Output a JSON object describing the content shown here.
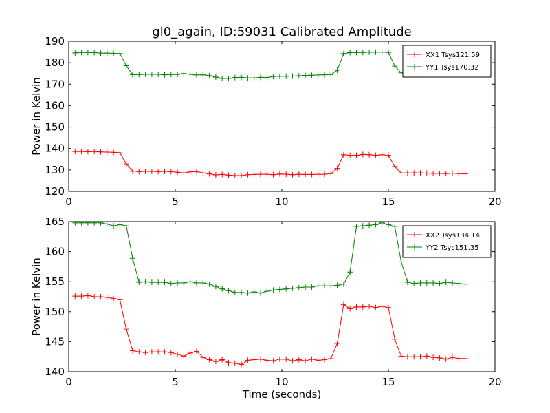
{
  "figure": {
    "title": "gl0_again, ID:59031 Calibrated Amplitude"
  },
  "chart_data": [
    {
      "type": "line",
      "title": "gl0_again, ID:59031 Calibrated Amplitude",
      "xlabel": "",
      "ylabel": "Power in Kelvin",
      "xlim": [
        0,
        20
      ],
      "ylim": [
        120,
        190
      ],
      "xticks": [
        0,
        5,
        10,
        15,
        20
      ],
      "yticks": [
        120,
        130,
        140,
        150,
        160,
        170,
        180,
        190
      ],
      "grid": false,
      "legend_position": "top-right",
      "x": [
        0.3,
        0.6,
        0.9,
        1.2,
        1.5,
        1.8,
        2.1,
        2.4,
        2.7,
        3.0,
        3.3,
        3.6,
        3.9,
        4.2,
        4.5,
        4.8,
        5.1,
        5.4,
        5.7,
        6.0,
        6.3,
        6.6,
        6.9,
        7.2,
        7.5,
        7.8,
        8.1,
        8.4,
        8.7,
        9.0,
        9.3,
        9.6,
        9.9,
        10.2,
        10.5,
        10.8,
        11.1,
        11.4,
        11.7,
        12.0,
        12.3,
        12.6,
        12.9,
        13.2,
        13.5,
        13.8,
        14.1,
        14.4,
        14.7,
        15.0,
        15.3,
        15.6,
        15.9,
        16.2,
        16.5,
        16.8,
        17.1,
        17.4,
        17.7,
        18.0,
        18.3,
        18.6
      ],
      "series": [
        {
          "name": "XX1 Tsys121.59",
          "color": "#ff0000",
          "values": [
            138.6,
            138.6,
            138.5,
            138.6,
            138.4,
            138.3,
            138.2,
            138.0,
            132.8,
            129.4,
            129.2,
            129.3,
            129.3,
            129.2,
            129.3,
            129.2,
            128.9,
            128.6,
            129.1,
            129.2,
            128.6,
            128.2,
            127.7,
            127.9,
            127.6,
            127.4,
            127.4,
            127.8,
            127.9,
            128.0,
            128.0,
            127.8,
            128.1,
            128.0,
            127.8,
            128.0,
            127.9,
            127.9,
            128.0,
            128.0,
            128.3,
            130.7,
            137.1,
            136.8,
            136.8,
            137.2,
            137.1,
            136.8,
            137.1,
            136.8,
            131.6,
            128.6,
            128.6,
            128.6,
            128.6,
            128.5,
            128.4,
            128.4,
            128.3,
            128.5,
            128.3,
            128.2
          ]
        },
        {
          "name": "YY1 Tsys170.32",
          "color": "#008000",
          "values": [
            184.6,
            184.8,
            184.8,
            184.7,
            184.5,
            184.5,
            184.4,
            184.3,
            178.6,
            174.4,
            174.5,
            174.6,
            174.6,
            174.6,
            174.4,
            174.5,
            174.5,
            175.0,
            174.6,
            174.3,
            174.4,
            174.0,
            173.3,
            172.7,
            172.7,
            173.1,
            173.2,
            172.9,
            172.9,
            173.2,
            173.1,
            173.6,
            173.7,
            173.7,
            173.8,
            173.9,
            174.1,
            174.2,
            174.3,
            174.4,
            174.5,
            176.5,
            184.3,
            184.7,
            184.8,
            184.8,
            184.9,
            184.9,
            185.0,
            184.8,
            178.4,
            175.3,
            175.0,
            175.1,
            175.1,
            175.2,
            175.2,
            175.0,
            174.9,
            175.0,
            174.8,
            174.8
          ]
        }
      ]
    },
    {
      "type": "line",
      "title": "",
      "xlabel": "Time (seconds)",
      "ylabel": "Power in Kelvin",
      "xlim": [
        0,
        20
      ],
      "ylim": [
        140,
        165
      ],
      "xticks": [
        0,
        5,
        10,
        15,
        20
      ],
      "yticks": [
        140,
        145,
        150,
        155,
        160,
        165
      ],
      "grid": false,
      "legend_position": "top-right",
      "x": [
        0.3,
        0.6,
        0.9,
        1.2,
        1.5,
        1.8,
        2.1,
        2.4,
        2.7,
        3.0,
        3.3,
        3.6,
        3.9,
        4.2,
        4.5,
        4.8,
        5.1,
        5.4,
        5.7,
        6.0,
        6.3,
        6.6,
        6.9,
        7.2,
        7.5,
        7.8,
        8.1,
        8.4,
        8.7,
        9.0,
        9.3,
        9.6,
        9.9,
        10.2,
        10.5,
        10.8,
        11.1,
        11.4,
        11.7,
        12.0,
        12.3,
        12.6,
        12.9,
        13.2,
        13.5,
        13.8,
        14.1,
        14.4,
        14.7,
        15.0,
        15.3,
        15.6,
        15.9,
        16.2,
        16.5,
        16.8,
        17.1,
        17.4,
        17.7,
        18.0,
        18.3,
        18.6
      ],
      "series": [
        {
          "name": "XX2 Tsys134.14",
          "color": "#ff0000",
          "values": [
            152.6,
            152.6,
            152.7,
            152.5,
            152.5,
            152.4,
            152.2,
            152.0,
            147.1,
            143.5,
            143.3,
            143.2,
            143.3,
            143.3,
            143.3,
            143.2,
            142.9,
            142.6,
            143.1,
            143.4,
            142.4,
            142.0,
            141.7,
            142.0,
            141.5,
            141.4,
            141.2,
            141.9,
            142.0,
            142.1,
            141.9,
            141.8,
            142.1,
            142.1,
            141.8,
            142.0,
            141.8,
            142.1,
            141.9,
            142.0,
            142.2,
            144.7,
            151.2,
            150.5,
            150.8,
            150.8,
            150.9,
            150.7,
            150.9,
            150.7,
            145.4,
            142.6,
            142.5,
            142.5,
            142.5,
            142.6,
            142.4,
            142.3,
            142.1,
            142.4,
            142.2,
            142.2
          ]
        },
        {
          "name": "YY2 Tsys151.35",
          "color": "#008000",
          "values": [
            164.8,
            164.8,
            164.8,
            164.8,
            164.8,
            164.6,
            164.3,
            164.5,
            164.3,
            158.9,
            154.9,
            155.0,
            154.9,
            154.9,
            154.9,
            154.7,
            154.8,
            154.8,
            155.0,
            154.8,
            154.8,
            154.6,
            154.2,
            153.8,
            153.5,
            153.2,
            153.2,
            153.1,
            153.3,
            153.1,
            153.4,
            153.6,
            153.7,
            153.8,
            153.9,
            154.0,
            154.1,
            154.1,
            154.3,
            154.3,
            154.3,
            154.4,
            154.6,
            156.6,
            164.2,
            164.3,
            164.4,
            164.5,
            164.8,
            164.5,
            164.2,
            158.3,
            154.9,
            154.7,
            154.8,
            154.8,
            154.8,
            154.7,
            154.9,
            154.8,
            154.7,
            154.6
          ]
        }
      ]
    }
  ]
}
